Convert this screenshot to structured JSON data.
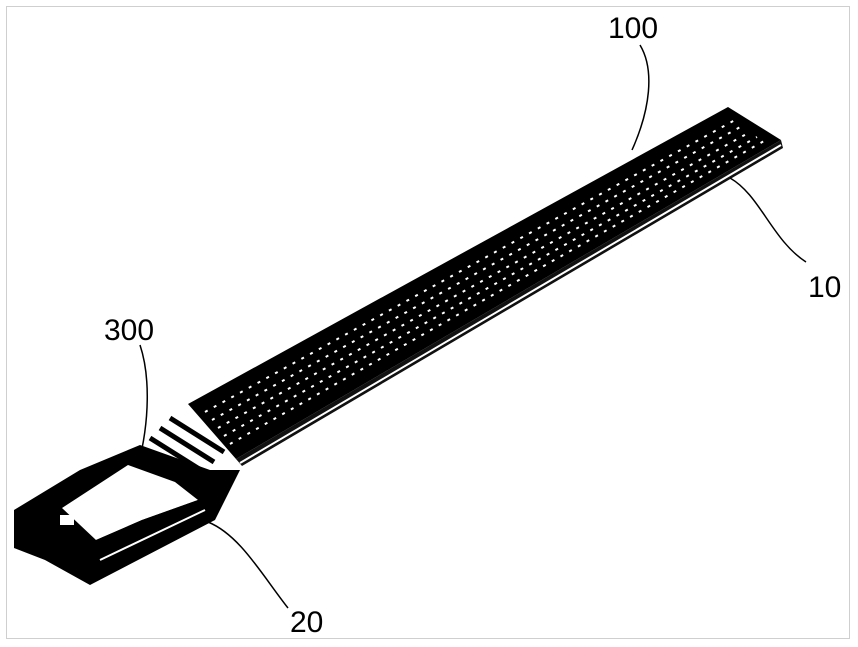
{
  "labels": {
    "strip": "100",
    "substrate": "10",
    "reaction_area": "300",
    "connector": "20"
  },
  "colors": {
    "ink": "#000000",
    "paper": "#ffffff",
    "frame": "#cfcfcf"
  }
}
